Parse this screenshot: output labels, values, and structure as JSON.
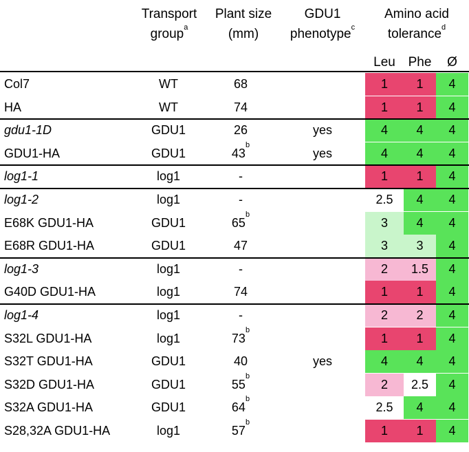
{
  "header": {
    "transport_group": [
      "Transport",
      "group"
    ],
    "transport_group_sup": "a",
    "plant_size": [
      "Plant size",
      "(mm)"
    ],
    "gdu1_phenotype": [
      "GDU1",
      "phenotype"
    ],
    "gdu1_phenotype_sup": "c",
    "amino_acid": [
      "Amino acid",
      "tolerance"
    ],
    "amino_acid_sup": "d",
    "leu": "Leu",
    "phe": "Phe",
    "nil": "Ø"
  },
  "colors": {
    "red": "#e8456f",
    "green": "#59e359",
    "light_green": "#c9f5cb",
    "light_pink": "#f7b8d3",
    "white": "#ffffff"
  },
  "rows": [
    {
      "name": "Col7",
      "italic": false,
      "tg": "WT",
      "ps": "68",
      "ps_sup": "",
      "ph": "",
      "leu": "1",
      "leu_c": "red",
      "phe": "1",
      "phe_c": "red",
      "nil": "4",
      "nil_c": "green"
    },
    {
      "name": "HA",
      "italic": false,
      "tg": "WT",
      "ps": "74",
      "ps_sup": "",
      "ph": "",
      "leu": "1",
      "leu_c": "red",
      "phe": "1",
      "phe_c": "red",
      "nil": "4",
      "nil_c": "green"
    },
    {
      "name": "gdu1-1D",
      "italic": true,
      "tg": "GDU1",
      "ps": "26",
      "ps_sup": "",
      "ph": "yes",
      "leu": "4",
      "leu_c": "green",
      "phe": "4",
      "phe_c": "green",
      "nil": "4",
      "nil_c": "green"
    },
    {
      "name": "GDU1-HA",
      "italic": false,
      "tg": "GDU1",
      "ps": "43",
      "ps_sup": "b",
      "ph": "yes",
      "leu": "4",
      "leu_c": "green",
      "phe": "4",
      "phe_c": "green",
      "nil": "4",
      "nil_c": "green"
    },
    {
      "name": "log1-1",
      "italic": true,
      "tg": "log1",
      "ps": "-",
      "ps_sup": "",
      "ph": "",
      "leu": "1",
      "leu_c": "red",
      "phe": "1",
      "phe_c": "red",
      "nil": "4",
      "nil_c": "green"
    },
    {
      "name": "log1-2",
      "italic": true,
      "tg": "log1",
      "ps": "-",
      "ps_sup": "",
      "ph": "",
      "leu": "2.5",
      "leu_c": "white",
      "phe": "4",
      "phe_c": "green",
      "nil": "4",
      "nil_c": "green"
    },
    {
      "name": "E68K GDU1-HA",
      "italic": false,
      "tg": "GDU1",
      "ps": "65",
      "ps_sup": "b",
      "ph": "",
      "leu": "3",
      "leu_c": "light_green",
      "phe": "4",
      "phe_c": "green",
      "nil": "4",
      "nil_c": "green"
    },
    {
      "name": "E68R GDU1-HA",
      "italic": false,
      "tg": "GDU1",
      "ps": "47",
      "ps_sup": "",
      "ph": "",
      "leu": "3",
      "leu_c": "light_green",
      "phe": "3",
      "phe_c": "light_green",
      "nil": "4",
      "nil_c": "green"
    },
    {
      "name": "log1-3",
      "italic": true,
      "tg": "log1",
      "ps": "-",
      "ps_sup": "",
      "ph": "",
      "leu": "2",
      "leu_c": "light_pink",
      "phe": "1.5",
      "phe_c": "light_pink",
      "nil": "4",
      "nil_c": "green"
    },
    {
      "name": "G40D GDU1-HA",
      "italic": false,
      "tg": "log1",
      "ps": "74",
      "ps_sup": "",
      "ph": "",
      "leu": "1",
      "leu_c": "red",
      "phe": "1",
      "phe_c": "red",
      "nil": "4",
      "nil_c": "green"
    },
    {
      "name": "log1-4",
      "italic": true,
      "tg": "log1",
      "ps": "-",
      "ps_sup": "",
      "ph": "",
      "leu": "2",
      "leu_c": "light_pink",
      "phe": "2",
      "phe_c": "light_pink",
      "nil": "4",
      "nil_c": "green"
    },
    {
      "name": "S32L GDU1-HA",
      "italic": false,
      "tg": "log1",
      "ps": "73",
      "ps_sup": "b",
      "ph": "",
      "leu": "1",
      "leu_c": "red",
      "phe": "1",
      "phe_c": "red",
      "nil": "4",
      "nil_c": "green"
    },
    {
      "name": "S32T GDU1-HA",
      "italic": false,
      "tg": "GDU1",
      "ps": "40",
      "ps_sup": "",
      "ph": "yes",
      "leu": "4",
      "leu_c": "green",
      "phe": "4",
      "phe_c": "green",
      "nil": "4",
      "nil_c": "green"
    },
    {
      "name": "S32D GDU1-HA",
      "italic": false,
      "tg": "GDU1",
      "ps": "55",
      "ps_sup": "b",
      "ph": "",
      "leu": "2",
      "leu_c": "light_pink",
      "phe": "2.5",
      "phe_c": "white",
      "nil": "4",
      "nil_c": "green"
    },
    {
      "name": "S32A GDU1-HA",
      "italic": false,
      "tg": "GDU1",
      "ps": "64",
      "ps_sup": "b",
      "ph": "",
      "leu": "2.5",
      "leu_c": "white",
      "phe": "4",
      "phe_c": "green",
      "nil": "4",
      "nil_c": "green"
    },
    {
      "name": "S28,32A GDU1-HA",
      "italic": false,
      "tg": "log1",
      "ps": "57",
      "ps_sup": "b",
      "ph": "",
      "leu": "1",
      "leu_c": "red",
      "phe": "1",
      "phe_c": "red",
      "nil": "4",
      "nil_c": "green"
    }
  ],
  "separators_after_rows": [
    1,
    3,
    4,
    7,
    9
  ]
}
